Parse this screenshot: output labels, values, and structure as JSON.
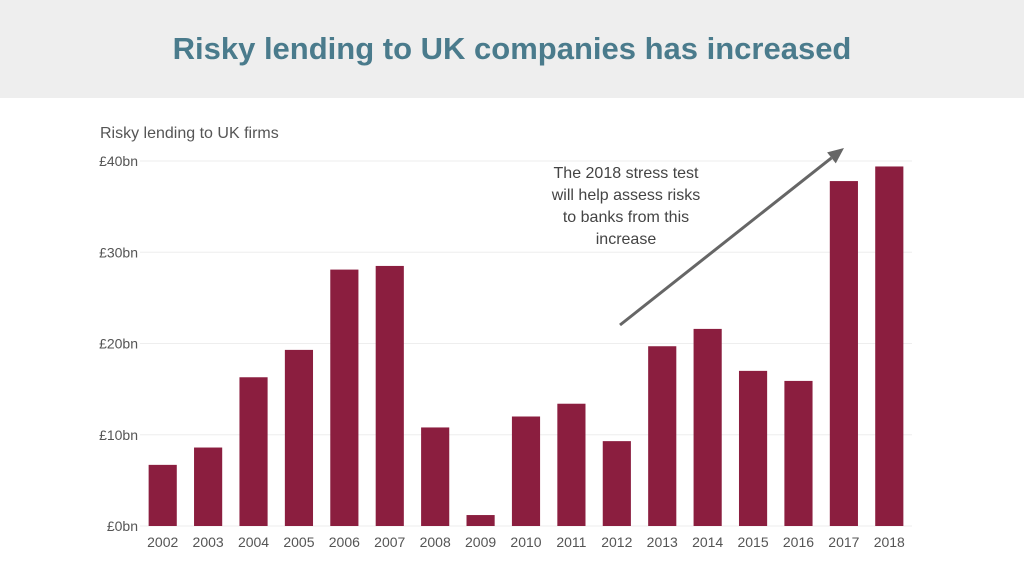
{
  "header": {
    "title": "Risky lending to UK companies has increased"
  },
  "colors": {
    "bar": "#8b1e3f",
    "title": "#4a7b8c",
    "header_bg": "#eeeeee",
    "arrow": "#666666"
  },
  "chart_data": {
    "type": "bar",
    "title": "Risky lending to UK firms",
    "categories": [
      "2002",
      "2003",
      "2004",
      "2005",
      "2006",
      "2007",
      "2008",
      "2009",
      "2010",
      "2011",
      "2012",
      "2013",
      "2014",
      "2015",
      "2016",
      "2017",
      "2018"
    ],
    "values": [
      6.7,
      8.6,
      16.3,
      19.3,
      28.1,
      28.5,
      10.8,
      1.2,
      12.0,
      13.4,
      9.3,
      19.7,
      21.6,
      17.0,
      15.9,
      37.8,
      39.4
    ],
    "ylim": [
      0,
      40
    ],
    "yticks": [
      0,
      10,
      20,
      30,
      40
    ],
    "ytick_labels": [
      "£0bn",
      "£10bn",
      "£20bn",
      "£30bn",
      "£40bn"
    ],
    "grid": true,
    "annotation": {
      "lines": [
        "The 2018 stress test",
        "will help assess risks",
        "to banks from this",
        "increase"
      ]
    }
  }
}
